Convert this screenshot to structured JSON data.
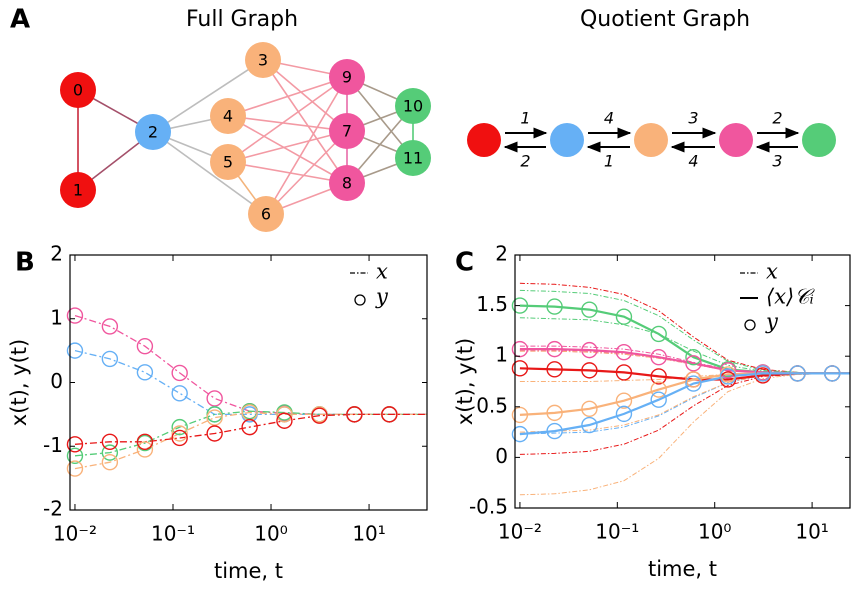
{
  "diagram": {
    "label": "A",
    "full_graph": {
      "title": "Full Graph",
      "nodes": [
        {
          "label": "0",
          "color": "#f01010"
        },
        {
          "label": "1",
          "color": "#f01010"
        },
        {
          "label": "2",
          "color": "#66b0f5"
        },
        {
          "label": "3",
          "color": "#f9b27a"
        },
        {
          "label": "4",
          "color": "#f9b27a"
        },
        {
          "label": "5",
          "color": "#f9b27a"
        },
        {
          "label": "6",
          "color": "#f9b27a"
        },
        {
          "label": "7",
          "color": "#f0569e"
        },
        {
          "label": "8",
          "color": "#f0569e"
        },
        {
          "label": "9",
          "color": "#f0569e"
        },
        {
          "label": "10",
          "color": "#55cc78"
        },
        {
          "label": "11",
          "color": "#55cc78"
        }
      ]
    },
    "quotient_graph": {
      "title": "Quotient Graph",
      "nodes": [
        {
          "color": "#f01010"
        },
        {
          "color": "#66b0f5"
        },
        {
          "color": "#f9b27a"
        },
        {
          "color": "#f0569e"
        },
        {
          "color": "#55cc78"
        }
      ],
      "edges": [
        {
          "forward": "1",
          "backward": "2"
        },
        {
          "forward": "4",
          "backward": "1"
        },
        {
          "forward": "3",
          "backward": "4"
        },
        {
          "forward": "2",
          "backward": "3"
        }
      ]
    }
  },
  "chart_data": [
    {
      "type": "line",
      "panel_label": "B",
      "xlabel": "time, t",
      "ylabel": "x(t), y(t)",
      "xscale": "log",
      "xlim": [
        0.0089,
        39
      ],
      "ylim": [
        -2,
        2
      ],
      "xticks": [
        {
          "value": 0.01,
          "label": "10⁻²"
        },
        {
          "value": 0.1,
          "label": "10⁻¹"
        },
        {
          "value": 1,
          "label": "10⁰"
        },
        {
          "value": 10,
          "label": "10¹"
        }
      ],
      "yticks": [
        -2,
        -1,
        0,
        1,
        2
      ],
      "legend": [
        {
          "label": "x",
          "style": "dash-dot"
        },
        {
          "label": "y",
          "style": "circle"
        }
      ],
      "x": [
        0.01,
        0.0227,
        0.0517,
        0.117,
        0.266,
        0.605,
        1.37,
        3.12,
        7.09,
        16.1,
        39
      ],
      "series": [
        {
          "color": "#f0569e",
          "line_style": "dash-dot",
          "line_values": [
            1.05,
            0.88,
            0.57,
            0.15,
            -0.25,
            -0.45,
            -0.48,
            -0.5,
            -0.5,
            -0.5,
            -0.5
          ],
          "marker_values": [
            1.05,
            0.88,
            0.57,
            0.15,
            -0.25,
            -0.45,
            -0.48,
            -0.5,
            -0.5,
            -0.5,
            null
          ]
        },
        {
          "color": "#66b0f5",
          "line_style": "dash-dot",
          "line_values": [
            0.5,
            0.37,
            0.16,
            -0.17,
            -0.5,
            -0.5,
            -0.5,
            -0.5,
            -0.5,
            -0.5,
            -0.5
          ],
          "marker_values": [
            0.5,
            0.37,
            0.16,
            -0.17,
            -0.5,
            -0.5,
            -0.5,
            -0.5,
            -0.5,
            -0.5,
            null
          ]
        },
        {
          "color": "#55cc78",
          "line_style": "dash-dot",
          "line_values": [
            -1.15,
            -1.1,
            -0.95,
            -0.7,
            -0.5,
            -0.45,
            -0.47,
            -0.5,
            -0.5,
            -0.5,
            -0.5
          ],
          "marker_values": [
            -1.15,
            -1.1,
            -0.95,
            -0.7,
            -0.5,
            -0.45,
            -0.47,
            -0.5,
            -0.5,
            -0.5,
            null
          ]
        },
        {
          "color": "#f9b27a",
          "line_style": "dash-dot",
          "line_values": [
            -1.35,
            -1.25,
            -1.05,
            -0.8,
            -0.55,
            -0.47,
            -0.5,
            -0.5,
            -0.5,
            -0.5,
            -0.5
          ],
          "marker_values": [
            -1.35,
            -1.25,
            -1.05,
            -0.8,
            -0.55,
            -0.47,
            -0.5,
            -0.5,
            -0.5,
            -0.5,
            null
          ]
        },
        {
          "color": "#e81818",
          "line_style": "dash-dot",
          "line_values": [
            -0.97,
            -0.93,
            -0.93,
            -0.87,
            -0.8,
            -0.7,
            -0.6,
            -0.52,
            -0.5,
            -0.5,
            -0.5
          ],
          "marker_values": [
            -0.97,
            -0.93,
            -0.93,
            -0.87,
            -0.8,
            -0.7,
            -0.6,
            -0.52,
            -0.5,
            -0.5,
            null
          ]
        }
      ],
      "node_series": []
    },
    {
      "type": "line",
      "panel_label": "C",
      "xlabel": "time, t",
      "ylabel": "x(t), y(t)",
      "xscale": "log",
      "xlim": [
        0.0089,
        24.5
      ],
      "ylim": [
        -0.5,
        2
      ],
      "xticks": [
        {
          "value": 0.01,
          "label": "10⁻²"
        },
        {
          "value": 0.1,
          "label": "10⁻¹"
        },
        {
          "value": 1,
          "label": "10⁰"
        },
        {
          "value": 10,
          "label": "10¹"
        }
      ],
      "yticks": [
        -0.5,
        0,
        0.5,
        1,
        1.5,
        2
      ],
      "legend": [
        {
          "label": "x",
          "style": "dash-dot"
        },
        {
          "label": "⟨x⟩𝒞ᵢ",
          "style": "solid"
        },
        {
          "label": "y",
          "style": "circle"
        }
      ],
      "x": [
        0.01,
        0.0227,
        0.0517,
        0.117,
        0.266,
        0.605,
        1.37,
        3.12,
        7.09,
        16.1,
        24.5
      ],
      "series": [
        {
          "color": "#55cc78",
          "line_style": "solid",
          "line_values": [
            1.5,
            1.49,
            1.46,
            1.39,
            1.22,
            0.99,
            0.87,
            0.84,
            0.83,
            0.83,
            0.83
          ],
          "marker_values": [
            1.5,
            1.49,
            1.46,
            1.39,
            1.22,
            0.99,
            0.87,
            0.84,
            0.83,
            0.83,
            null
          ]
        },
        {
          "color": "#f0569e",
          "line_style": "solid",
          "line_values": [
            1.07,
            1.07,
            1.06,
            1.04,
            0.99,
            0.93,
            0.86,
            0.84,
            0.83,
            0.83,
            0.83
          ],
          "marker_values": [
            1.07,
            1.07,
            1.06,
            1.04,
            0.99,
            0.93,
            0.86,
            0.84,
            0.83,
            0.83,
            null
          ]
        },
        {
          "color": "#e81818",
          "line_style": "solid",
          "line_values": [
            0.88,
            0.87,
            0.86,
            0.84,
            0.8,
            0.77,
            0.77,
            0.81,
            0.83,
            0.83,
            0.83
          ],
          "marker_values": [
            0.88,
            0.87,
            0.86,
            0.84,
            0.8,
            0.77,
            0.77,
            0.81,
            0.83,
            0.83,
            null
          ]
        },
        {
          "color": "#f9b27a",
          "line_style": "solid",
          "line_values": [
            0.42,
            0.44,
            0.48,
            0.56,
            0.67,
            0.77,
            0.82,
            0.83,
            0.83,
            0.83,
            0.83
          ],
          "marker_values": [
            0.42,
            0.44,
            0.48,
            0.56,
            0.67,
            0.77,
            0.82,
            0.83,
            0.83,
            0.83,
            null
          ]
        },
        {
          "color": "#66b0f5",
          "line_style": "solid",
          "line_values": [
            0.23,
            0.26,
            0.32,
            0.43,
            0.57,
            0.73,
            0.8,
            0.83,
            0.83,
            0.83,
            0.83
          ],
          "marker_values": [
            0.23,
            0.26,
            0.32,
            0.43,
            0.57,
            0.73,
            0.8,
            0.83,
            0.83,
            0.83,
            null
          ]
        }
      ],
      "node_series": [
        {
          "color": "#e81818",
          "values": [
            1.72,
            1.71,
            1.68,
            1.61,
            1.45,
            1.19,
            0.96,
            0.87,
            0.84,
            0.83,
            0.83
          ]
        },
        {
          "color": "#e81818",
          "values": [
            0.03,
            0.04,
            0.06,
            0.13,
            0.27,
            0.51,
            0.71,
            0.8,
            0.82,
            0.83,
            0.83
          ]
        },
        {
          "color": "#55cc78",
          "values": [
            1.65,
            1.64,
            1.62,
            1.55,
            1.4,
            1.16,
            0.95,
            0.86,
            0.84,
            0.83,
            0.83
          ]
        },
        {
          "color": "#55cc78",
          "values": [
            1.38,
            1.37,
            1.36,
            1.31,
            1.22,
            1.05,
            0.91,
            0.85,
            0.84,
            0.83,
            0.83
          ]
        },
        {
          "color": "#f0569e",
          "values": [
            1.1,
            1.1,
            1.09,
            1.07,
            1.02,
            0.94,
            0.87,
            0.84,
            0.83,
            0.83,
            0.83
          ]
        },
        {
          "color": "#f0569e",
          "values": [
            1.06,
            1.06,
            1.05,
            1.03,
            0.99,
            0.92,
            0.86,
            0.84,
            0.83,
            0.83,
            0.83
          ]
        },
        {
          "color": "#f0569e",
          "values": [
            1.05,
            1.05,
            1.04,
            1.02,
            0.98,
            0.92,
            0.86,
            0.84,
            0.83,
            0.83,
            0.83
          ]
        },
        {
          "color": "#66b0f5",
          "values": [
            0.23,
            0.24,
            0.25,
            0.3,
            0.41,
            0.59,
            0.74,
            0.81,
            0.82,
            0.83,
            0.83
          ]
        },
        {
          "color": "#f9b27a",
          "values": [
            1.05,
            1.05,
            1.04,
            1.02,
            0.98,
            0.92,
            0.86,
            0.84,
            0.83,
            0.83,
            0.83
          ]
        },
        {
          "color": "#f9b27a",
          "values": [
            0.75,
            0.75,
            0.75,
            0.76,
            0.77,
            0.8,
            0.82,
            0.83,
            0.83,
            0.83,
            0.83
          ]
        },
        {
          "color": "#f9b27a",
          "values": [
            0.25,
            0.26,
            0.27,
            0.32,
            0.42,
            0.6,
            0.74,
            0.81,
            0.82,
            0.83,
            0.83
          ]
        },
        {
          "color": "#f9b27a",
          "values": [
            -0.37,
            -0.36,
            -0.32,
            -0.23,
            -0.01,
            0.35,
            0.65,
            0.78,
            0.82,
            0.83,
            0.83
          ]
        }
      ]
    }
  ]
}
